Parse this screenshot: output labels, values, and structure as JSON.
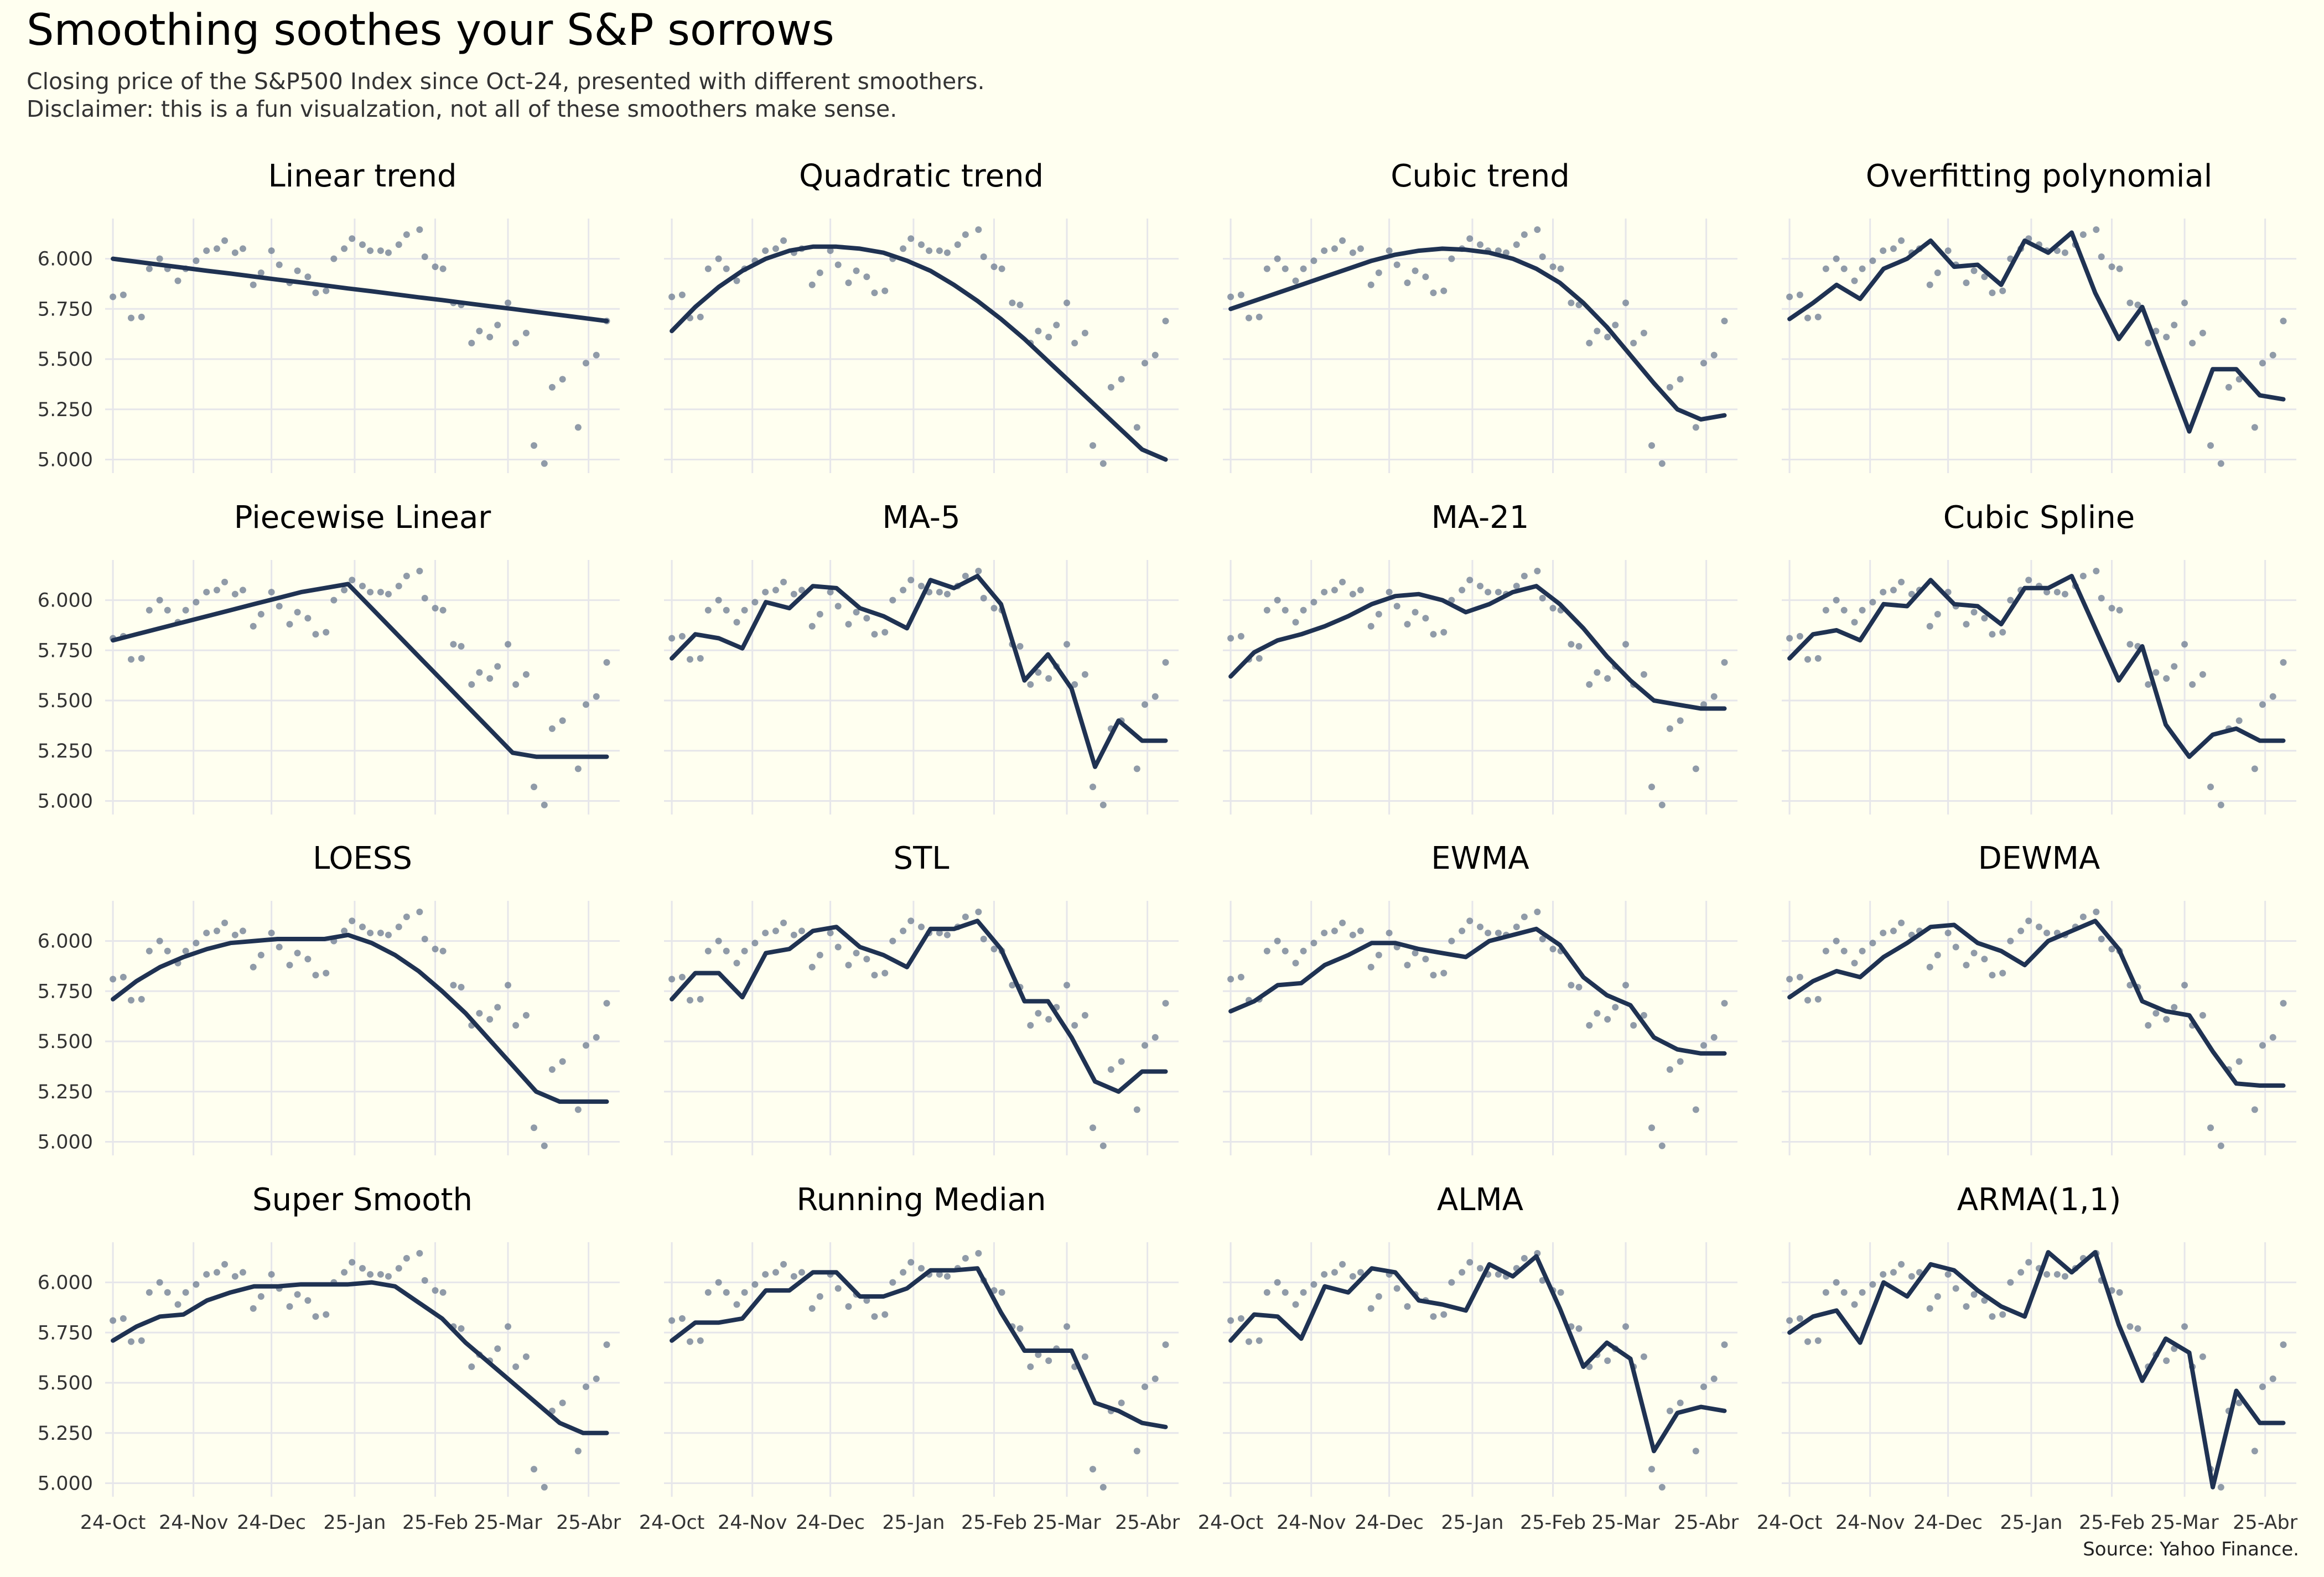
{
  "header": {
    "title": "Smoothing soothes your S&P sorrows",
    "subtitle_line1": "Closing price of the S&P500 Index since Oct-24, presented with different smoothers.",
    "subtitle_line2": "Disclaimer: this is a fun visualzation, not all of these smoothers make sense."
  },
  "footer": {
    "source": "Source: Yahoo Finance."
  },
  "colors": {
    "background": "#fffff0",
    "line": "#1f3252",
    "points": "#6b7a90",
    "grid": "#e6e6ea"
  },
  "chart_data": {
    "type": "line",
    "layout": "4x4 small multiples",
    "y_ticks": [
      5000,
      5250,
      5500,
      5750,
      6000
    ],
    "y_tick_labels": [
      "5.000",
      "5.250",
      "5.500",
      "5.750",
      "6.000"
    ],
    "x_ticks": [
      "2024-10-24",
      "2024-11-24",
      "2024-12-24",
      "2025-01-25",
      "2025-02-25",
      "2025-03-25",
      "2025-04-25"
    ],
    "x_tick_labels": [
      "24-Oct",
      "24-Nov",
      "24-Dec",
      "25-Jan",
      "25-Feb",
      "25-Mar",
      "25-Abr"
    ],
    "x_range": [
      "2024-10-21",
      "2025-05-07"
    ],
    "y_range": [
      4960,
      6200
    ],
    "points": {
      "x": [
        "2024-10-24",
        "2024-10-28",
        "2024-10-31",
        "2024-11-04",
        "2024-11-07",
        "2024-11-11",
        "2024-11-14",
        "2024-11-18",
        "2024-11-21",
        "2024-11-25",
        "2024-11-29",
        "2024-12-03",
        "2024-12-06",
        "2024-12-10",
        "2024-12-13",
        "2024-12-17",
        "2024-12-20",
        "2024-12-24",
        "2024-12-27",
        "2024-12-31",
        "2025-01-03",
        "2025-01-07",
        "2025-01-10",
        "2025-01-14",
        "2025-01-17",
        "2025-01-21",
        "2025-01-24",
        "2025-01-28",
        "2025-01-31",
        "2025-02-04",
        "2025-02-07",
        "2025-02-11",
        "2025-02-14",
        "2025-02-19",
        "2025-02-21",
        "2025-02-25",
        "2025-02-28",
        "2025-03-04",
        "2025-03-07",
        "2025-03-11",
        "2025-03-14",
        "2025-03-18",
        "2025-03-21",
        "2025-03-25",
        "2025-03-28",
        "2025-04-01",
        "2025-04-04",
        "2025-04-08",
        "2025-04-11",
        "2025-04-15",
        "2025-04-21",
        "2025-04-24",
        "2025-04-28",
        "2025-05-02"
      ],
      "y": [
        5810,
        5820,
        5705,
        5710,
        5950,
        6000,
        5950,
        5890,
        5950,
        5990,
        6040,
        6050,
        6090,
        6030,
        6050,
        5870,
        5930,
        6040,
        5970,
        5880,
        5940,
        5910,
        5830,
        5840,
        6000,
        6050,
        6100,
        6070,
        6040,
        6040,
        6030,
        6070,
        6120,
        6145,
        6010,
        5960,
        5950,
        5780,
        5770,
        5580,
        5640,
        5610,
        5670,
        5780,
        5580,
        5630,
        5070,
        4980,
        5360,
        5400,
        5160,
        5480,
        5520,
        5690
      ]
    },
    "panels": [
      {
        "title": "Linear trend",
        "values": [
          6000,
          5985,
          5970,
          5955,
          5940,
          5926,
          5911,
          5896,
          5882,
          5867,
          5852,
          5838,
          5823,
          5808,
          5794,
          5779,
          5764,
          5750,
          5735,
          5720,
          5705,
          5690
        ]
      },
      {
        "title": "Quadratic trend",
        "values": [
          5640,
          5760,
          5860,
          5940,
          6000,
          6040,
          6060,
          6060,
          6050,
          6030,
          5990,
          5940,
          5870,
          5790,
          5700,
          5600,
          5490,
          5380,
          5270,
          5160,
          5050,
          5000
        ]
      },
      {
        "title": "Cubic trend",
        "values": [
          5750,
          5790,
          5830,
          5870,
          5910,
          5950,
          5990,
          6020,
          6040,
          6050,
          6045,
          6030,
          6000,
          5950,
          5880,
          5780,
          5660,
          5520,
          5380,
          5250,
          5200,
          5220
        ]
      },
      {
        "title": "Overfitting polynomial",
        "values": [
          5700,
          5780,
          5870,
          5800,
          5950,
          6000,
          6090,
          5960,
          5970,
          5870,
          6090,
          6030,
          6130,
          5830,
          5600,
          5760,
          5450,
          5140,
          5450,
          5450,
          5320,
          5300
        ]
      },
      {
        "title": "Piecewise Linear",
        "values": [
          5800,
          5830,
          5860,
          5890,
          5920,
          5950,
          5980,
          6010,
          6040,
          6060,
          6080,
          5960,
          5840,
          5720,
          5600,
          5480,
          5360,
          5240,
          5220,
          5220,
          5220,
          5220
        ]
      },
      {
        "title": "MA-5",
        "values": [
          5710,
          5830,
          5810,
          5760,
          5990,
          5960,
          6070,
          6060,
          5960,
          5920,
          5860,
          6100,
          6060,
          6120,
          5980,
          5600,
          5730,
          5560,
          5170,
          5400,
          5300,
          5300
        ]
      },
      {
        "title": "MA-21",
        "values": [
          5620,
          5740,
          5800,
          5830,
          5870,
          5920,
          5980,
          6020,
          6030,
          6000,
          5940,
          5980,
          6040,
          6070,
          5980,
          5860,
          5720,
          5600,
          5500,
          5480,
          5460,
          5460
        ]
      },
      {
        "title": "Cubic Spline",
        "values": [
          5710,
          5830,
          5850,
          5800,
          5980,
          5970,
          6100,
          5980,
          5970,
          5880,
          6060,
          6060,
          6120,
          5860,
          5600,
          5770,
          5380,
          5220,
          5330,
          5360,
          5300,
          5300
        ]
      },
      {
        "title": "LOESS",
        "values": [
          5710,
          5800,
          5870,
          5920,
          5960,
          5990,
          6000,
          6010,
          6010,
          6010,
          6030,
          5990,
          5930,
          5850,
          5750,
          5640,
          5510,
          5380,
          5250,
          5200,
          5200,
          5200
        ]
      },
      {
        "title": "STL",
        "values": [
          5710,
          5840,
          5840,
          5720,
          5940,
          5960,
          6050,
          6070,
          5970,
          5930,
          5870,
          6060,
          6060,
          6100,
          5960,
          5700,
          5700,
          5520,
          5300,
          5250,
          5350,
          5350
        ]
      },
      {
        "title": "EWMA",
        "values": [
          5650,
          5700,
          5780,
          5790,
          5880,
          5930,
          5990,
          5990,
          5960,
          5940,
          5920,
          6000,
          6030,
          6060,
          5980,
          5820,
          5730,
          5680,
          5520,
          5460,
          5440,
          5440
        ]
      },
      {
        "title": "DEWMA",
        "values": [
          5720,
          5800,
          5850,
          5820,
          5920,
          5990,
          6070,
          6080,
          5990,
          5950,
          5880,
          6000,
          6050,
          6100,
          5960,
          5700,
          5650,
          5630,
          5450,
          5290,
          5280,
          5280
        ]
      },
      {
        "title": "Super Smooth",
        "values": [
          5710,
          5780,
          5830,
          5840,
          5910,
          5950,
          5980,
          5980,
          5990,
          5990,
          5990,
          6000,
          5980,
          5900,
          5820,
          5700,
          5600,
          5500,
          5400,
          5300,
          5250,
          5250
        ]
      },
      {
        "title": "Running Median",
        "values": [
          5710,
          5800,
          5800,
          5820,
          5960,
          5960,
          6050,
          6050,
          5930,
          5930,
          5970,
          6060,
          6060,
          6070,
          5850,
          5660,
          5660,
          5660,
          5400,
          5360,
          5300,
          5280
        ]
      },
      {
        "title": "ALMA",
        "values": [
          5710,
          5840,
          5830,
          5720,
          5980,
          5950,
          6070,
          6050,
          5910,
          5890,
          5860,
          6090,
          6030,
          6130,
          5870,
          5580,
          5700,
          5620,
          5160,
          5350,
          5380,
          5360
        ]
      },
      {
        "title": "ARMA(1,1)",
        "values": [
          5750,
          5830,
          5860,
          5700,
          6000,
          5930,
          6090,
          6060,
          5960,
          5880,
          5830,
          6150,
          6050,
          6150,
          5790,
          5510,
          5720,
          5650,
          4980,
          5460,
          5300,
          5300
        ]
      }
    ]
  }
}
